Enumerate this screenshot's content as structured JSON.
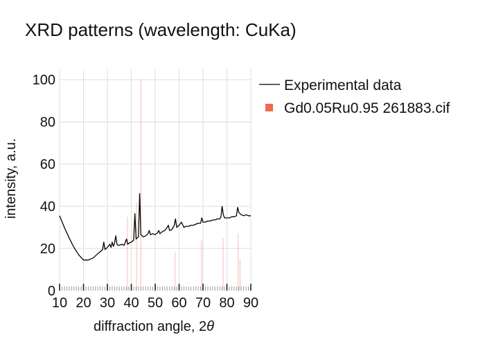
{
  "chart_data": {
    "type": "line",
    "title": "XRD patterns (wavelength: CuKa)",
    "xlabel": "diffraction angle, 2θ",
    "ylabel": "intensity, a.u.",
    "xlim": [
      10,
      90
    ],
    "ylim": [
      0,
      105
    ],
    "xticks": [
      10,
      20,
      30,
      40,
      50,
      60,
      70,
      80,
      90
    ],
    "yticks": [
      0,
      20,
      40,
      60,
      80,
      100
    ],
    "grid": true,
    "legend_position": "right",
    "colors": {
      "experimental": "#000000",
      "reference": "#ef6a55"
    },
    "series": [
      {
        "name": "Experimental data",
        "style": "line",
        "x": [
          10,
          12,
          14,
          16,
          18,
          20,
          22,
          24,
          26,
          27,
          28,
          28.5,
          29,
          29.5,
          30,
          31,
          31.5,
          32,
          32.5,
          33,
          33.5,
          34,
          34.5,
          35,
          36,
          37,
          38,
          38.5,
          39,
          40,
          41,
          41.5,
          42,
          42.5,
          43,
          43.5,
          44,
          44.5,
          45,
          46,
          47,
          47.5,
          48,
          49,
          50,
          51,
          51.5,
          52,
          53,
          54,
          55,
          55.5,
          56,
          57,
          58,
          58.5,
          59,
          60,
          61,
          62,
          63,
          64,
          65,
          66,
          67,
          68,
          69,
          69.5,
          70,
          71,
          72,
          73,
          74,
          75,
          76,
          77,
          77.5,
          78,
          78.5,
          79,
          80,
          81,
          82,
          83,
          84,
          84.5,
          85,
          86,
          87,
          88,
          89,
          90
        ],
        "y": [
          35.5,
          30,
          25,
          20.5,
          17,
          14.5,
          14.5,
          15.5,
          17.5,
          18.5,
          19.5,
          23,
          19.5,
          20,
          20.5,
          22,
          20.5,
          23,
          21,
          22.5,
          26,
          22,
          21.5,
          21.5,
          22,
          21.5,
          24.5,
          22,
          22.5,
          23,
          24,
          36.5,
          24.5,
          25,
          25.5,
          46,
          26.5,
          26,
          25.5,
          26,
          27,
          28.5,
          26.5,
          27,
          26.5,
          27.5,
          28.5,
          27,
          28,
          28.5,
          30,
          31,
          28.5,
          29,
          31,
          34,
          30,
          31,
          32.5,
          30,
          30.5,
          30.5,
          31,
          31,
          31.5,
          32,
          32,
          34.5,
          32.5,
          32.5,
          33,
          33,
          33.5,
          33.5,
          34,
          34,
          35,
          40,
          36,
          34.5,
          34.5,
          34.5,
          35,
          35,
          35.5,
          39.5,
          37,
          36,
          35.5,
          36,
          35.5,
          35.5
        ]
      },
      {
        "name": "Gd0.05Ru0.95 261883.cif",
        "style": "stick",
        "x": [
          38.4,
          42.2,
          44.0,
          58.3,
          69.4,
          78.4,
          84.7,
          85.5
        ],
        "y": [
          35,
          42,
          100,
          18,
          24,
          25,
          27,
          15
        ]
      }
    ]
  }
}
